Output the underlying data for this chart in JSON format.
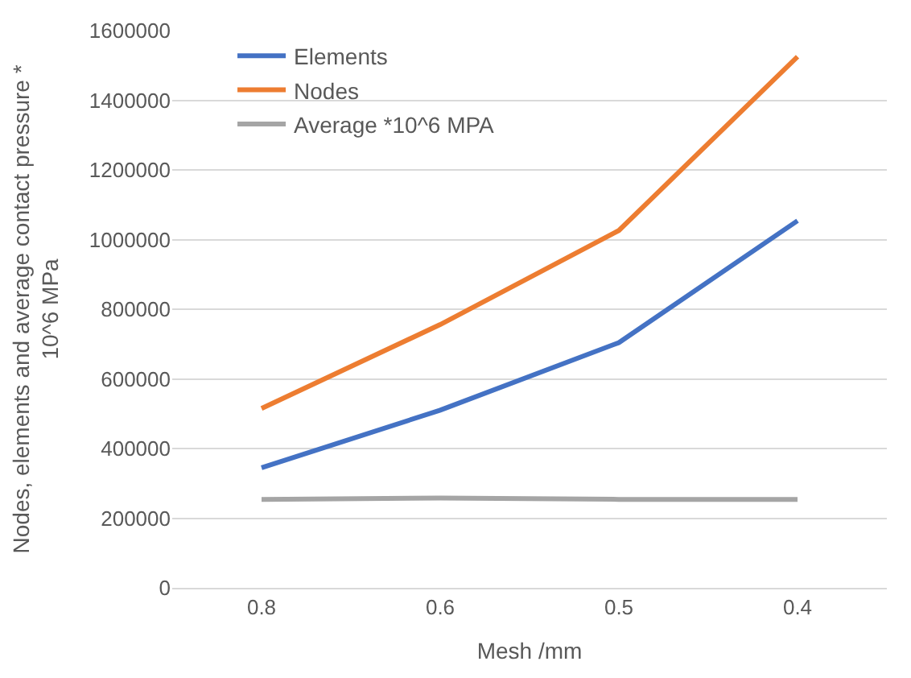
{
  "chart_data": {
    "type": "line",
    "xlabel": "Mesh /mm",
    "ylabel": "Nodes, elements and average contact pressure * 10^6 MPa",
    "categories": [
      "0.8",
      "0.6",
      "0.5",
      "0.4"
    ],
    "series": [
      {
        "name": "Elements",
        "color": "#4472c4",
        "values": [
          345000,
          510000,
          704000,
          1054000
        ]
      },
      {
        "name": "Nodes",
        "color": "#ed7d31",
        "values": [
          515000,
          756000,
          1026000,
          1525000
        ]
      },
      {
        "name": "Average *10^6 MPA",
        "color": "#a5a5a5",
        "values": [
          254000,
          258000,
          254000,
          254000
        ]
      }
    ],
    "ylim": [
      0,
      1600000
    ],
    "yticks": [
      0,
      200000,
      400000,
      600000,
      800000,
      1000000,
      1200000,
      1400000,
      1600000
    ],
    "grid": "y",
    "legend": "top left",
    "marker": "none",
    "line_style": "solid"
  }
}
